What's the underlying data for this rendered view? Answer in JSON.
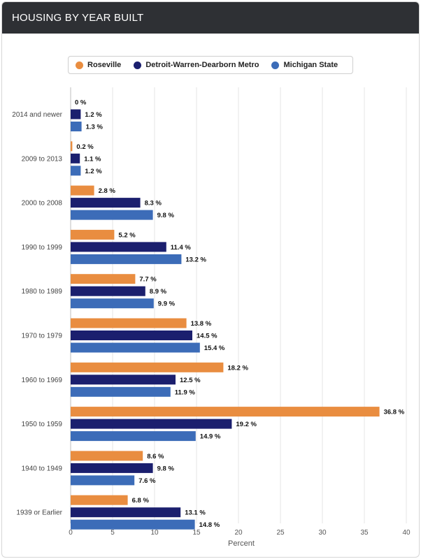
{
  "header": {
    "title": "HOUSING BY YEAR BUILT"
  },
  "chart_data": {
    "type": "bar",
    "orientation": "horizontal",
    "title": "HOUSING BY YEAR BUILT",
    "xlabel": "Percent",
    "ylabel": "",
    "xlim": [
      0,
      40
    ],
    "xticks": [
      0,
      5,
      10,
      15,
      20,
      25,
      30,
      35,
      40
    ],
    "grid": true,
    "legend_position": "top",
    "categories": [
      "2014 and newer",
      "2009 to 2013",
      "2000 to 2008",
      "1990 to 1999",
      "1980 to 1989",
      "1970 to 1979",
      "1960 to 1969",
      "1950 to 1959",
      "1940 to 1949",
      "1939 or Earlier"
    ],
    "series": [
      {
        "name": "Roseville",
        "color": "#e98d40",
        "values": [
          0,
          0.2,
          2.8,
          5.2,
          7.7,
          13.8,
          18.2,
          36.8,
          8.6,
          6.8
        ]
      },
      {
        "name": "Detroit-Warren-Dearborn Metro",
        "color": "#1b1f6e",
        "values": [
          1.2,
          1.1,
          8.3,
          11.4,
          8.9,
          14.5,
          12.5,
          19.2,
          9.8,
          13.1
        ]
      },
      {
        "name": "Michigan State",
        "color": "#3c6cb8",
        "values": [
          1.3,
          1.2,
          9.8,
          13.2,
          9.9,
          15.4,
          11.9,
          14.9,
          7.6,
          14.8
        ]
      }
    ],
    "value_suffix": " %"
  }
}
